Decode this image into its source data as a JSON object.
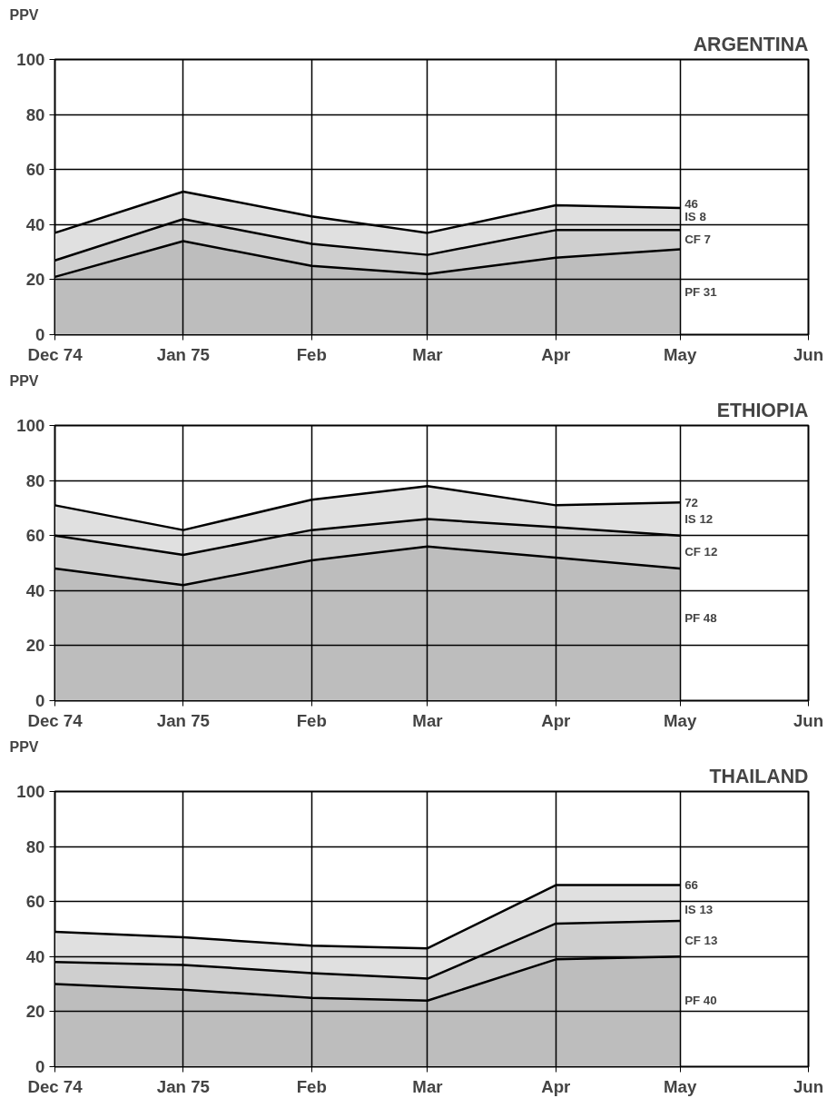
{
  "chart_data": [
    {
      "type": "area",
      "title": "ARGENTINA",
      "ylabel": "PPV",
      "stacked": true,
      "grid": true,
      "x": [
        "1974-12",
        "1975-01",
        "1975-02",
        "1975-03",
        "1975-04",
        "1975-05"
      ],
      "xlim": [
        "1974-12",
        "1975-06"
      ],
      "xticks": [
        {
          "value": "1974-12",
          "label": "Dec 74"
        },
        {
          "value": "1975-01",
          "label": "Jan 75"
        },
        {
          "value": "1975-02",
          "label": "Feb"
        },
        {
          "value": "1975-03",
          "label": "Mar"
        },
        {
          "value": "1975-04",
          "label": "Apr"
        },
        {
          "value": "1975-05",
          "label": "May"
        },
        {
          "value": "1975-06",
          "label": "Jun"
        }
      ],
      "ylim": [
        0,
        100
      ],
      "yticks": [
        0,
        20,
        40,
        60,
        80,
        100
      ],
      "series": [
        {
          "color": "#bdbdbd",
          "values": [
            21,
            34,
            25,
            22,
            28,
            31
          ]
        },
        {
          "color": "#cfcfcf",
          "values": [
            6,
            8,
            8,
            7,
            10,
            7
          ]
        },
        {
          "color": "#e0e0e0",
          "values": [
            10,
            10,
            10,
            8,
            9,
            8
          ]
        }
      ],
      "annotations": [
        {
          "text": "46",
          "x": "1975-05",
          "y": 47.5
        },
        {
          "text": "IS 8",
          "x": "1975-05",
          "y": 43
        },
        {
          "text": "CF 7",
          "x": "1975-05",
          "y": 34.5
        },
        {
          "text": "PF 31",
          "x": "1975-05",
          "y": 15.5
        }
      ]
    },
    {
      "type": "area",
      "title": "ETHIOPIA",
      "ylabel": "PPV",
      "stacked": true,
      "grid": true,
      "x": [
        "1974-12",
        "1975-01",
        "1975-02",
        "1975-03",
        "1975-04",
        "1975-05"
      ],
      "xlim": [
        "1974-12",
        "1975-06"
      ],
      "xticks": [
        {
          "value": "1974-12",
          "label": "Dec 74"
        },
        {
          "value": "1975-01",
          "label": "Jan 75"
        },
        {
          "value": "1975-02",
          "label": "Feb"
        },
        {
          "value": "1975-03",
          "label": "Mar"
        },
        {
          "value": "1975-04",
          "label": "Apr"
        },
        {
          "value": "1975-05",
          "label": "May"
        },
        {
          "value": "1975-06",
          "label": "Jun"
        }
      ],
      "ylim": [
        0,
        100
      ],
      "yticks": [
        0,
        20,
        40,
        60,
        80,
        100
      ],
      "series": [
        {
          "color": "#bdbdbd",
          "values": [
            48,
            42,
            51,
            56,
            52,
            48
          ]
        },
        {
          "color": "#cfcfcf",
          "values": [
            12,
            11,
            11,
            10,
            11,
            12
          ]
        },
        {
          "color": "#e0e0e0",
          "values": [
            11,
            9,
            11,
            12,
            8,
            12
          ]
        }
      ],
      "annotations": [
        {
          "text": "72",
          "x": "1975-05",
          "y": 72
        },
        {
          "text": "IS 12",
          "x": "1975-05",
          "y": 66
        },
        {
          "text": "CF 12",
          "x": "1975-05",
          "y": 54
        },
        {
          "text": "PF 48",
          "x": "1975-05",
          "y": 30
        }
      ]
    },
    {
      "type": "area",
      "title": "THAILAND",
      "ylabel": "PPV",
      "stacked": true,
      "grid": true,
      "x": [
        "1974-12",
        "1975-01",
        "1975-02",
        "1975-03",
        "1975-04",
        "1975-05"
      ],
      "xlim": [
        "1974-12",
        "1975-06"
      ],
      "xticks": [
        {
          "value": "1974-12",
          "label": "Dec 74"
        },
        {
          "value": "1975-01",
          "label": "Jan 75"
        },
        {
          "value": "1975-02",
          "label": "Feb"
        },
        {
          "value": "1975-03",
          "label": "Mar"
        },
        {
          "value": "1975-04",
          "label": "Apr"
        },
        {
          "value": "1975-05",
          "label": "May"
        },
        {
          "value": "1975-06",
          "label": "Jun"
        }
      ],
      "ylim": [
        0,
        100
      ],
      "yticks": [
        0,
        20,
        40,
        60,
        80,
        100
      ],
      "series": [
        {
          "color": "#bdbdbd",
          "values": [
            30,
            28,
            25,
            24,
            39,
            40
          ]
        },
        {
          "color": "#cfcfcf",
          "values": [
            8,
            9,
            9,
            8,
            13,
            13
          ]
        },
        {
          "color": "#e0e0e0",
          "values": [
            11,
            10,
            10,
            11,
            14,
            13
          ]
        }
      ],
      "annotations": [
        {
          "text": "66",
          "x": "1975-05",
          "y": 66
        },
        {
          "text": "IS 13",
          "x": "1975-05",
          "y": 57
        },
        {
          "text": "CF 13",
          "x": "1975-05",
          "y": 46
        },
        {
          "text": "PF 40",
          "x": "1975-05",
          "y": 24
        }
      ]
    }
  ]
}
